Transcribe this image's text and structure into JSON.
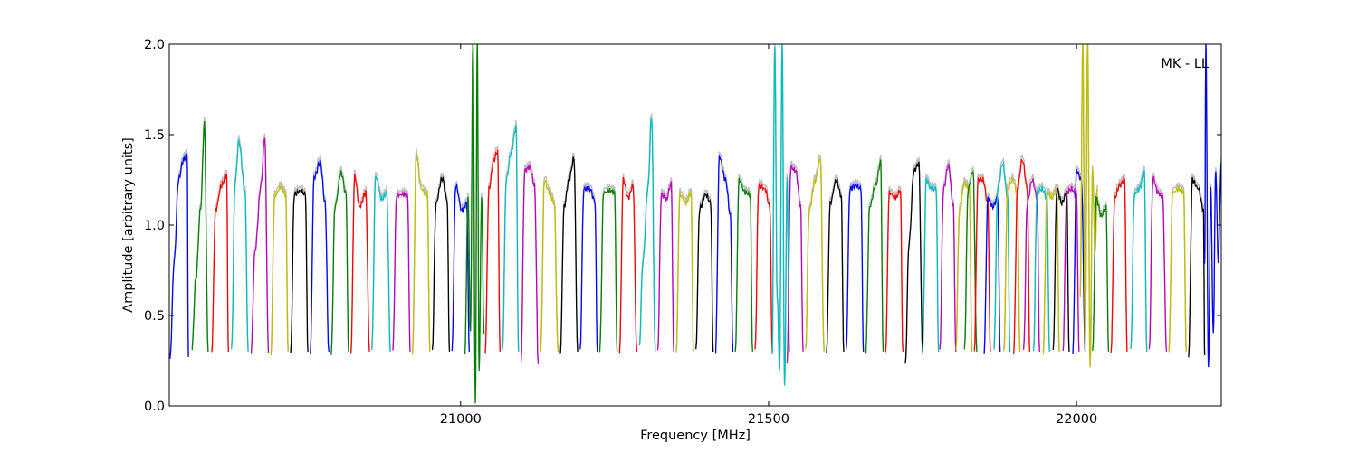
{
  "chart_data": {
    "type": "line",
    "title": "",
    "xlabel": "Frequency [MHz]",
    "ylabel": "Amplitude [arbitrary units]",
    "xlim": [
      20527,
      22235
    ],
    "ylim": [
      0.0,
      2.0
    ],
    "xticks": [
      21000,
      21500,
      22000
    ],
    "yticks": [
      0.0,
      0.5,
      1.0,
      1.5,
      2.0
    ],
    "xtick_labels": [
      "21000",
      "21500",
      "22000"
    ],
    "ytick_labels": [
      "0.0",
      "0.5",
      "1.0",
      "1.5",
      "2.0"
    ],
    "grid": false,
    "legend": "none",
    "annotation": "MK - LL",
    "line_colors": [
      "#0000ff",
      "#008000",
      "#ff0000",
      "#00bfbf",
      "#bf00bf",
      "#bfbf00",
      "#000000"
    ],
    "reference_color": "#bfbfbf",
    "channel_width_mhz": 32,
    "series": [
      {
        "color": "#0000ff",
        "x": [
          20528,
          20535,
          20542,
          20550,
          20556,
          20558
        ],
        "y": [
          0.25,
          0.8,
          1.25,
          1.36,
          1.39,
          0.27
        ]
      },
      {
        "color": "#008000",
        "x": [
          20564,
          20570,
          20578,
          20584,
          20590
        ],
        "y": [
          0.32,
          0.7,
          1.1,
          1.56,
          0.3
        ]
      },
      {
        "color": "#ff0000",
        "x": [
          20596,
          20602,
          20612,
          20620,
          20623
        ],
        "y": [
          0.3,
          1.08,
          1.22,
          1.28,
          0.3
        ]
      },
      {
        "color": "#00bfbf",
        "x": [
          20628,
          20634,
          20640,
          20650,
          20655
        ],
        "y": [
          0.3,
          1.24,
          1.46,
          1.18,
          0.3
        ]
      },
      {
        "color": "#bf00bf",
        "x": [
          20660,
          20666,
          20676,
          20682,
          20688
        ],
        "y": [
          0.3,
          0.85,
          1.22,
          1.49,
          0.29
        ]
      },
      {
        "color": "#bfbf00",
        "x": [
          20692,
          20698,
          20708,
          20716,
          20720
        ],
        "y": [
          0.28,
          1.16,
          1.21,
          1.17,
          0.3
        ]
      },
      {
        "color": "#000000",
        "x": [
          20724,
          20730,
          20740,
          20748,
          20752
        ],
        "y": [
          0.28,
          1.17,
          1.19,
          1.17,
          0.3
        ]
      },
      {
        "color": "#0000ff",
        "x": [
          20756,
          20762,
          20772,
          20780,
          20786
        ],
        "y": [
          0.3,
          1.26,
          1.35,
          1.12,
          0.3
        ]
      },
      {
        "color": "#008000",
        "x": [
          20790,
          20796,
          20806,
          20814,
          20818
        ],
        "y": [
          0.28,
          1.1,
          1.29,
          1.17,
          0.3
        ]
      },
      {
        "color": "#ff0000",
        "x": [
          20822,
          20828,
          20836,
          20846,
          20852
        ],
        "y": [
          0.3,
          1.27,
          1.1,
          1.18,
          0.3
        ]
      },
      {
        "color": "#00bfbf",
        "x": [
          20856,
          20862,
          20872,
          20880,
          20886
        ],
        "y": [
          0.32,
          1.27,
          1.14,
          1.18,
          0.3
        ]
      },
      {
        "color": "#bf00bf",
        "x": [
          20890,
          20896,
          20906,
          20914,
          20918
        ],
        "y": [
          0.3,
          1.16,
          1.17,
          1.16,
          0.3
        ]
      },
      {
        "color": "#bfbf00",
        "x": [
          20922,
          20928,
          20936,
          20946,
          20950
        ],
        "y": [
          0.3,
          1.39,
          1.2,
          1.16,
          0.3
        ]
      },
      {
        "color": "#000000",
        "x": [
          20954,
          20960,
          20970,
          20978,
          20982
        ],
        "y": [
          0.3,
          1.12,
          1.26,
          1.14,
          0.3
        ]
      },
      {
        "color": "#0000ff",
        "x": [
          20986,
          20992,
          21002,
          21010,
          21014
        ],
        "y": [
          0.3,
          1.22,
          1.08,
          1.12,
          0.3
        ]
      },
      {
        "color": "#008000",
        "x": [
          21007,
          21012,
          21016,
          21020,
          21024,
          21027,
          21030,
          21034,
          21038
        ],
        "y": [
          0.3,
          1.15,
          0.4,
          2.0,
          0.0,
          2.0,
          0.2,
          1.15,
          0.4
        ]
      },
      {
        "color": "#ff0000",
        "x": [
          21040,
          21046,
          21054,
          21060,
          21064
        ],
        "y": [
          0.3,
          1.2,
          1.36,
          1.41,
          0.3
        ]
      },
      {
        "color": "#00bfbf",
        "x": [
          21068,
          21074,
          21082,
          21090,
          21094
        ],
        "y": [
          0.3,
          1.25,
          1.4,
          1.54,
          0.3
        ]
      },
      {
        "color": "#bf00bf",
        "x": [
          21098,
          21104,
          21112,
          21120,
          21126
        ],
        "y": [
          0.23,
          1.3,
          1.32,
          1.22,
          0.23
        ]
      },
      {
        "color": "#bfbf00",
        "x": [
          21130,
          21136,
          21144,
          21152,
          21158
        ],
        "y": [
          0.3,
          1.25,
          1.18,
          1.12,
          0.3
        ]
      },
      {
        "color": "#000000",
        "x": [
          21162,
          21168,
          21176,
          21184,
          21190
        ],
        "y": [
          0.3,
          1.1,
          1.25,
          1.37,
          0.3
        ]
      },
      {
        "color": "#0000ff",
        "x": [
          21194,
          21200,
          21210,
          21218,
          21222
        ],
        "y": [
          0.3,
          1.2,
          1.2,
          1.13,
          0.3
        ]
      },
      {
        "color": "#008000",
        "x": [
          21226,
          21232,
          21242,
          21250,
          21254
        ],
        "y": [
          0.3,
          1.18,
          1.19,
          1.18,
          0.3
        ]
      },
      {
        "color": "#ff0000",
        "x": [
          21258,
          21264,
          21272,
          21280,
          21286
        ],
        "y": [
          0.3,
          1.25,
          1.15,
          1.22,
          0.3
        ]
      },
      {
        "color": "#00bfbf",
        "x": [
          21290,
          21296,
          21304,
          21310,
          21316
        ],
        "y": [
          0.32,
          0.8,
          1.2,
          1.6,
          0.3
        ]
      },
      {
        "color": "#bf00bf",
        "x": [
          21320,
          21326,
          21334,
          21342,
          21346
        ],
        "y": [
          0.3,
          1.17,
          1.14,
          1.23,
          0.3
        ]
      },
      {
        "color": "#bfbf00",
        "x": [
          21350,
          21356,
          21366,
          21374,
          21378
        ],
        "y": [
          0.3,
          1.17,
          1.12,
          1.18,
          0.3
        ]
      },
      {
        "color": "#000000",
        "x": [
          21382,
          21388,
          21398,
          21406,
          21410
        ],
        "y": [
          0.3,
          1.09,
          1.17,
          1.12,
          0.3
        ]
      },
      {
        "color": "#0000ff",
        "x": [
          21414,
          21420,
          21430,
          21438,
          21442
        ],
        "y": [
          0.3,
          1.38,
          1.25,
          1.05,
          0.3
        ]
      },
      {
        "color": "#008000",
        "x": [
          21446,
          21452,
          21462,
          21470,
          21474
        ],
        "y": [
          0.3,
          1.25,
          1.18,
          1.17,
          0.3
        ]
      },
      {
        "color": "#ff0000",
        "x": [
          21478,
          21484,
          21494,
          21502,
          21506
        ],
        "y": [
          0.3,
          1.22,
          1.2,
          1.1,
          0.3
        ]
      },
      {
        "color": "#00bfbf",
        "x": [
          21506,
          21510,
          21514,
          21518,
          21522,
          21526,
          21530,
          21534
        ],
        "y": [
          0.3,
          2.0,
          0.6,
          0.2,
          2.0,
          0.1,
          1.25,
          0.3
        ]
      },
      {
        "color": "#bf00bf",
        "x": [
          21530,
          21536,
          21544,
          21552,
          21556
        ],
        "y": [
          0.22,
          1.32,
          1.3,
          1.1,
          0.3
        ]
      },
      {
        "color": "#bfbf00",
        "x": [
          21560,
          21566,
          21576,
          21584,
          21590
        ],
        "y": [
          0.3,
          1.08,
          1.25,
          1.37,
          0.3
        ]
      },
      {
        "color": "#000000",
        "x": [
          21594,
          21600,
          21610,
          21618,
          21622
        ],
        "y": [
          0.3,
          1.12,
          1.25,
          1.16,
          0.3
        ]
      },
      {
        "color": "#0000ff",
        "x": [
          21626,
          21632,
          21642,
          21650,
          21654
        ],
        "y": [
          0.3,
          1.2,
          1.22,
          1.2,
          0.3
        ]
      },
      {
        "color": "#008000",
        "x": [
          21658,
          21664,
          21674,
          21682,
          21686
        ],
        "y": [
          0.3,
          1.1,
          1.22,
          1.35,
          0.3
        ]
      },
      {
        "color": "#ff0000",
        "x": [
          21690,
          21696,
          21706,
          21714,
          21718
        ],
        "y": [
          0.3,
          1.18,
          1.15,
          1.19,
          0.3
        ]
      },
      {
        "color": "#000000",
        "x": [
          21722,
          21728,
          21736,
          21744,
          21750
        ],
        "y": [
          0.22,
          0.9,
          1.3,
          1.34,
          0.3
        ]
      },
      {
        "color": "#00bfbf",
        "x": [
          21750,
          21756,
          21764,
          21772,
          21776
        ],
        "y": [
          0.3,
          1.25,
          1.2,
          1.2,
          0.3
        ]
      },
      {
        "color": "#bf00bf",
        "x": [
          21778,
          21784,
          21792,
          21800,
          21804
        ],
        "y": [
          0.3,
          1.2,
          1.33,
          1.1,
          0.3
        ]
      },
      {
        "color": "#bfbf00",
        "x": [
          21804,
          21810,
          21818,
          21826,
          21830
        ],
        "y": [
          0.3,
          1.08,
          1.23,
          1.2,
          0.3
        ]
      },
      {
        "color": "#008000",
        "x": [
          21818,
          21824,
          21832,
          21838
        ],
        "y": [
          0.3,
          1.2,
          1.3,
          0.3
        ]
      },
      {
        "color": "#ff0000",
        "x": [
          21834,
          21840,
          21848,
          21856,
          21860
        ],
        "y": [
          0.3,
          1.25,
          1.25,
          1.12,
          0.3
        ]
      },
      {
        "color": "#0000ff",
        "x": [
          21850,
          21856,
          21864,
          21872,
          21876
        ],
        "y": [
          0.3,
          1.15,
          1.1,
          1.15,
          0.3
        ]
      },
      {
        "color": "#00bfbf",
        "x": [
          21866,
          21872,
          21880,
          21888,
          21892
        ],
        "y": [
          0.3,
          1.2,
          1.34,
          1.15,
          0.3
        ]
      },
      {
        "color": "#bfbf00",
        "x": [
          21882,
          21888,
          21896,
          21904,
          21908
        ],
        "y": [
          0.3,
          1.2,
          1.25,
          1.18,
          0.3
        ]
      },
      {
        "color": "#ff0000",
        "x": [
          21898,
          21904,
          21912,
          21920,
          21924
        ],
        "y": [
          0.3,
          1.2,
          1.36,
          1.2,
          0.3
        ]
      },
      {
        "color": "#bf00bf",
        "x": [
          21914,
          21920,
          21928,
          21936,
          21940
        ],
        "y": [
          0.3,
          1.12,
          1.25,
          1.15,
          0.3
        ]
      },
      {
        "color": "#00bfbf",
        "x": [
          21930,
          21936,
          21944,
          21952,
          21956
        ],
        "y": [
          0.3,
          1.18,
          1.2,
          1.15,
          0.3
        ]
      },
      {
        "color": "#bfbf00",
        "x": [
          21946,
          21952,
          21960,
          21968,
          21972
        ],
        "y": [
          0.3,
          1.18,
          1.15,
          1.2,
          0.3
        ]
      },
      {
        "color": "#000000",
        "x": [
          21962,
          21968,
          21976,
          21984,
          21988
        ],
        "y": [
          0.3,
          1.2,
          1.12,
          1.18,
          0.3
        ]
      },
      {
        "color": "#bf00bf",
        "x": [
          21978,
          21984,
          21992,
          22000,
          22004
        ],
        "y": [
          0.3,
          1.18,
          1.2,
          1.16,
          0.3
        ]
      },
      {
        "color": "#0000ff",
        "x": [
          21994,
          22000,
          22008,
          22014
        ],
        "y": [
          0.3,
          1.3,
          1.25,
          0.3
        ]
      },
      {
        "color": "#bfbf00",
        "x": [
          22006,
          22010,
          22014,
          22018,
          22022,
          22026,
          22030,
          22034
        ],
        "y": [
          0.6,
          2.0,
          0.3,
          2.0,
          0.2,
          1.3,
          0.85,
          1.2
        ]
      },
      {
        "color": "#008000",
        "x": [
          22026,
          22032,
          22040,
          22048,
          22052
        ],
        "y": [
          0.3,
          1.15,
          1.05,
          1.1,
          0.3
        ]
      },
      {
        "color": "#ff0000",
        "x": [
          22056,
          22062,
          22070,
          22078,
          22082
        ],
        "y": [
          0.3,
          1.15,
          1.22,
          1.25,
          0.3
        ]
      },
      {
        "color": "#00bfbf",
        "x": [
          22088,
          22094,
          22102,
          22110,
          22114
        ],
        "y": [
          0.3,
          1.17,
          1.2,
          1.29,
          0.3
        ]
      },
      {
        "color": "#bf00bf",
        "x": [
          22118,
          22124,
          22132,
          22140,
          22146
        ],
        "y": [
          0.3,
          1.26,
          1.18,
          1.15,
          0.3
        ]
      },
      {
        "color": "#bfbf00",
        "x": [
          22150,
          22156,
          22166,
          22174,
          22178
        ],
        "y": [
          0.3,
          1.18,
          1.2,
          1.18,
          0.3
        ]
      },
      {
        "color": "#000000",
        "x": [
          22182,
          22188,
          22198,
          22206,
          22208
        ],
        "y": [
          0.28,
          1.25,
          1.2,
          1.08,
          0.28
        ]
      },
      {
        "color": "#0000ff",
        "x": [
          22208,
          22210,
          22214,
          22218,
          22222,
          22226,
          22230,
          22235
        ],
        "y": [
          0.8,
          2.0,
          0.2,
          1.2,
          0.4,
          1.3,
          0.8,
          1.35
        ]
      }
    ]
  }
}
